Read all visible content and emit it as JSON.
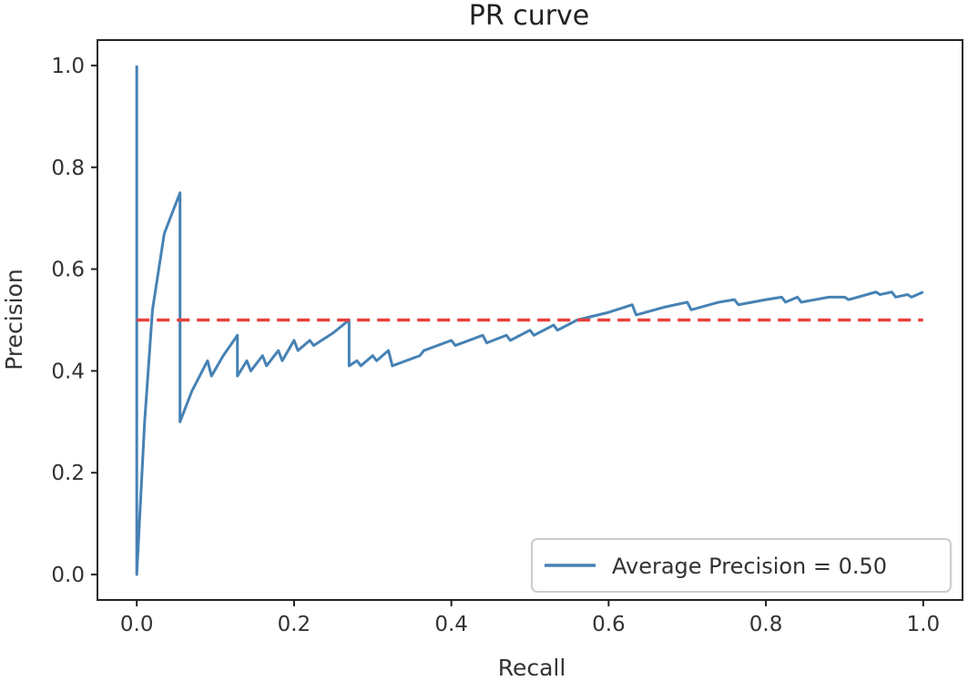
{
  "chart_data": {
    "type": "line",
    "title": "PR curve",
    "xlabel": "Recall",
    "ylabel": "Precision",
    "xlim": [
      -0.05,
      1.05
    ],
    "ylim": [
      -0.05,
      1.05
    ],
    "xticks": [
      0.0,
      0.2,
      0.4,
      0.6,
      0.8,
      1.0
    ],
    "xtick_labels": [
      "0.0",
      "0.2",
      "0.4",
      "0.6",
      "0.8",
      "1.0"
    ],
    "yticks": [
      0.0,
      0.2,
      0.4,
      0.6,
      0.8,
      1.0
    ],
    "ytick_labels": [
      "0.0",
      "0.2",
      "0.4",
      "0.6",
      "0.8",
      "1.0"
    ],
    "grid": false,
    "legend_position": "lower-right",
    "series": [
      {
        "name": "Average Precision = 0.50",
        "color": "#4682b4",
        "style": "solid",
        "x": [
          0.0,
          0.0,
          0.0,
          0.01,
          0.02,
          0.035,
          0.055,
          0.055,
          0.07,
          0.09,
          0.095,
          0.11,
          0.128,
          0.128,
          0.14,
          0.145,
          0.16,
          0.165,
          0.18,
          0.185,
          0.2,
          0.205,
          0.22,
          0.225,
          0.25,
          0.27,
          0.27,
          0.28,
          0.285,
          0.3,
          0.305,
          0.32,
          0.325,
          0.36,
          0.365,
          0.4,
          0.405,
          0.44,
          0.445,
          0.47,
          0.475,
          0.5,
          0.505,
          0.53,
          0.535,
          0.56,
          0.6,
          0.63,
          0.635,
          0.67,
          0.7,
          0.705,
          0.74,
          0.76,
          0.765,
          0.8,
          0.82,
          0.825,
          0.84,
          0.845,
          0.88,
          0.9,
          0.905,
          0.94,
          0.945,
          0.96,
          0.965,
          0.98,
          0.985,
          1.0
        ],
        "y": [
          1.0,
          0.0,
          0.0,
          0.3,
          0.52,
          0.67,
          0.75,
          0.3,
          0.36,
          0.42,
          0.39,
          0.43,
          0.47,
          0.39,
          0.42,
          0.4,
          0.43,
          0.41,
          0.44,
          0.42,
          0.46,
          0.44,
          0.46,
          0.45,
          0.475,
          0.5,
          0.41,
          0.42,
          0.41,
          0.43,
          0.42,
          0.44,
          0.41,
          0.43,
          0.44,
          0.46,
          0.45,
          0.47,
          0.455,
          0.47,
          0.46,
          0.48,
          0.47,
          0.49,
          0.48,
          0.5,
          0.515,
          0.53,
          0.51,
          0.525,
          0.535,
          0.52,
          0.535,
          0.54,
          0.53,
          0.54,
          0.545,
          0.535,
          0.545,
          0.535,
          0.545,
          0.545,
          0.54,
          0.555,
          0.55,
          0.555,
          0.545,
          0.55,
          0.545,
          0.555
        ]
      },
      {
        "name": "",
        "color": "#e8403d",
        "style": "dashed",
        "x": [
          0.0,
          1.0
        ],
        "y": [
          0.5,
          0.5
        ]
      }
    ]
  }
}
